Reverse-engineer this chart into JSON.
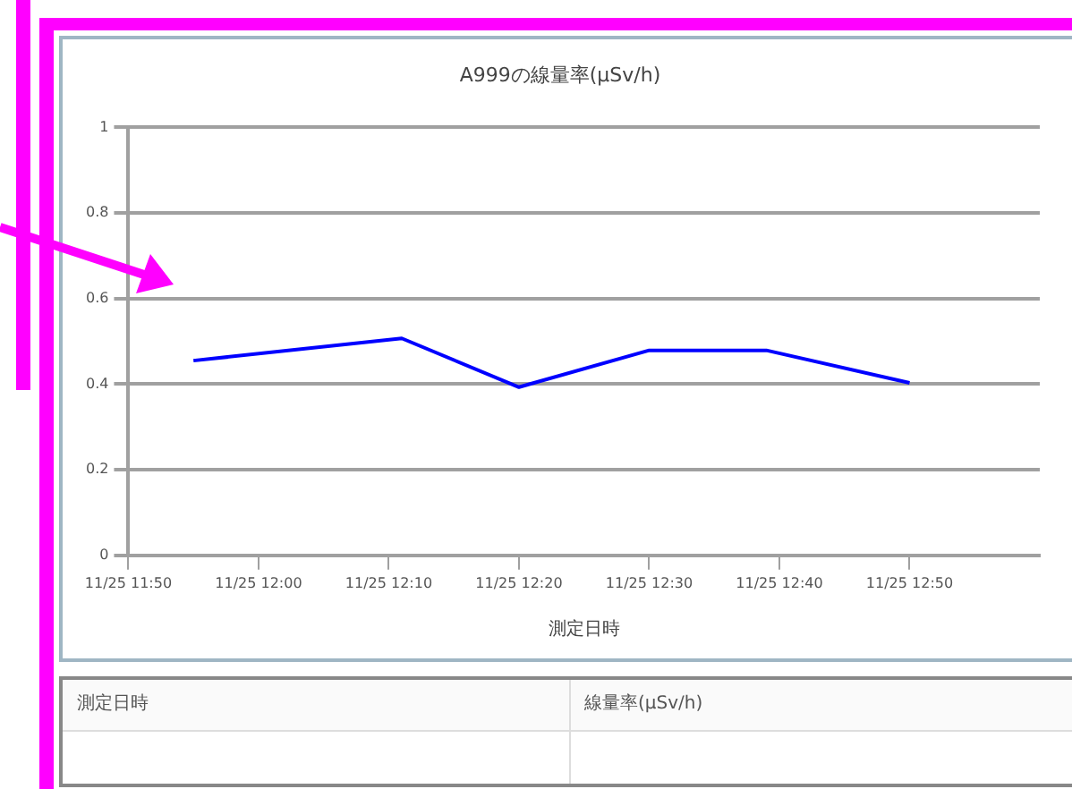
{
  "chart_data": {
    "type": "line",
    "title": "A999の線量率(μSv/h)",
    "xlabel": "測定日時",
    "x": [
      "--11-25T11:55",
      "--11-25T12:11",
      "--11-25T12:20",
      "--11-25T12:30",
      "--11-25T12:39",
      "--11-25T12:50"
    ],
    "series": [
      {
        "color": "#0000ff",
        "values": [
          0.455,
          0.507,
          0.393,
          0.479,
          0.479,
          0.403
        ]
      }
    ],
    "xlim": [
      "--11-25T11:50",
      "--11-25T13:00"
    ],
    "xticks": [
      {
        "value": "--11-25T11:50",
        "label": "11/25 11:50"
      },
      {
        "value": "--11-25T12:00",
        "label": "11/25 12:00"
      },
      {
        "value": "--11-25T12:10",
        "label": "11/25 12:10"
      },
      {
        "value": "--11-25T12:20",
        "label": "11/25 12:20"
      },
      {
        "value": "--11-25T12:30",
        "label": "11/25 12:30"
      },
      {
        "value": "--11-25T12:40",
        "label": "11/25 12:40"
      },
      {
        "value": "--11-25T12:50",
        "label": "11/25 12:50"
      }
    ],
    "ylim": [
      0,
      1
    ],
    "yticks": [
      0,
      0.2,
      0.4,
      0.6,
      0.8,
      1
    ],
    "grid": "y",
    "legend": false,
    "marker": "none",
    "line_style": "solid",
    "annotations": [
      "測定日時",
      "線量率(μSv/h)"
    ]
  }
}
